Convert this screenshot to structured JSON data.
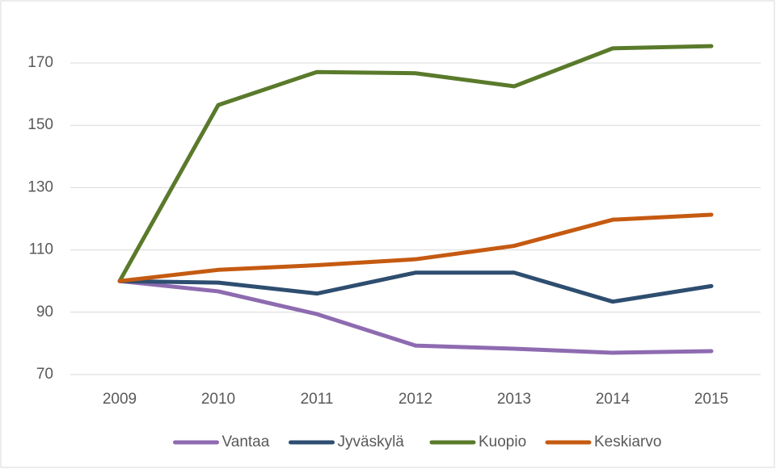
{
  "chart_data": {
    "type": "line",
    "categories": [
      "2009",
      "2010",
      "2011",
      "2012",
      "2013",
      "2014",
      "2015"
    ],
    "series": [
      {
        "name": "Vantaa",
        "color": "#8e6bb0",
        "values": [
          100,
          96.7,
          89.4,
          79.3,
          78.3,
          77,
          77.5
        ]
      },
      {
        "name": "Jyväskylä",
        "color": "#2e4e70",
        "values": [
          100,
          99.5,
          96,
          102.7,
          102.7,
          93.4,
          98.4
        ]
      },
      {
        "name": "Kuopio",
        "color": "#5a7a2b",
        "values": [
          100,
          156.5,
          167.1,
          166.7,
          162.5,
          174.7,
          175.4
        ]
      },
      {
        "name": "Keskiarvo",
        "color": "#c55a11",
        "values": [
          100,
          103.6,
          105.1,
          107,
          111.3,
          119.7,
          121.3
        ]
      }
    ],
    "ylim": [
      70,
      180
    ],
    "yticks": [
      70,
      90,
      110,
      130,
      150,
      170
    ],
    "grid": true,
    "legend": "bottom"
  }
}
